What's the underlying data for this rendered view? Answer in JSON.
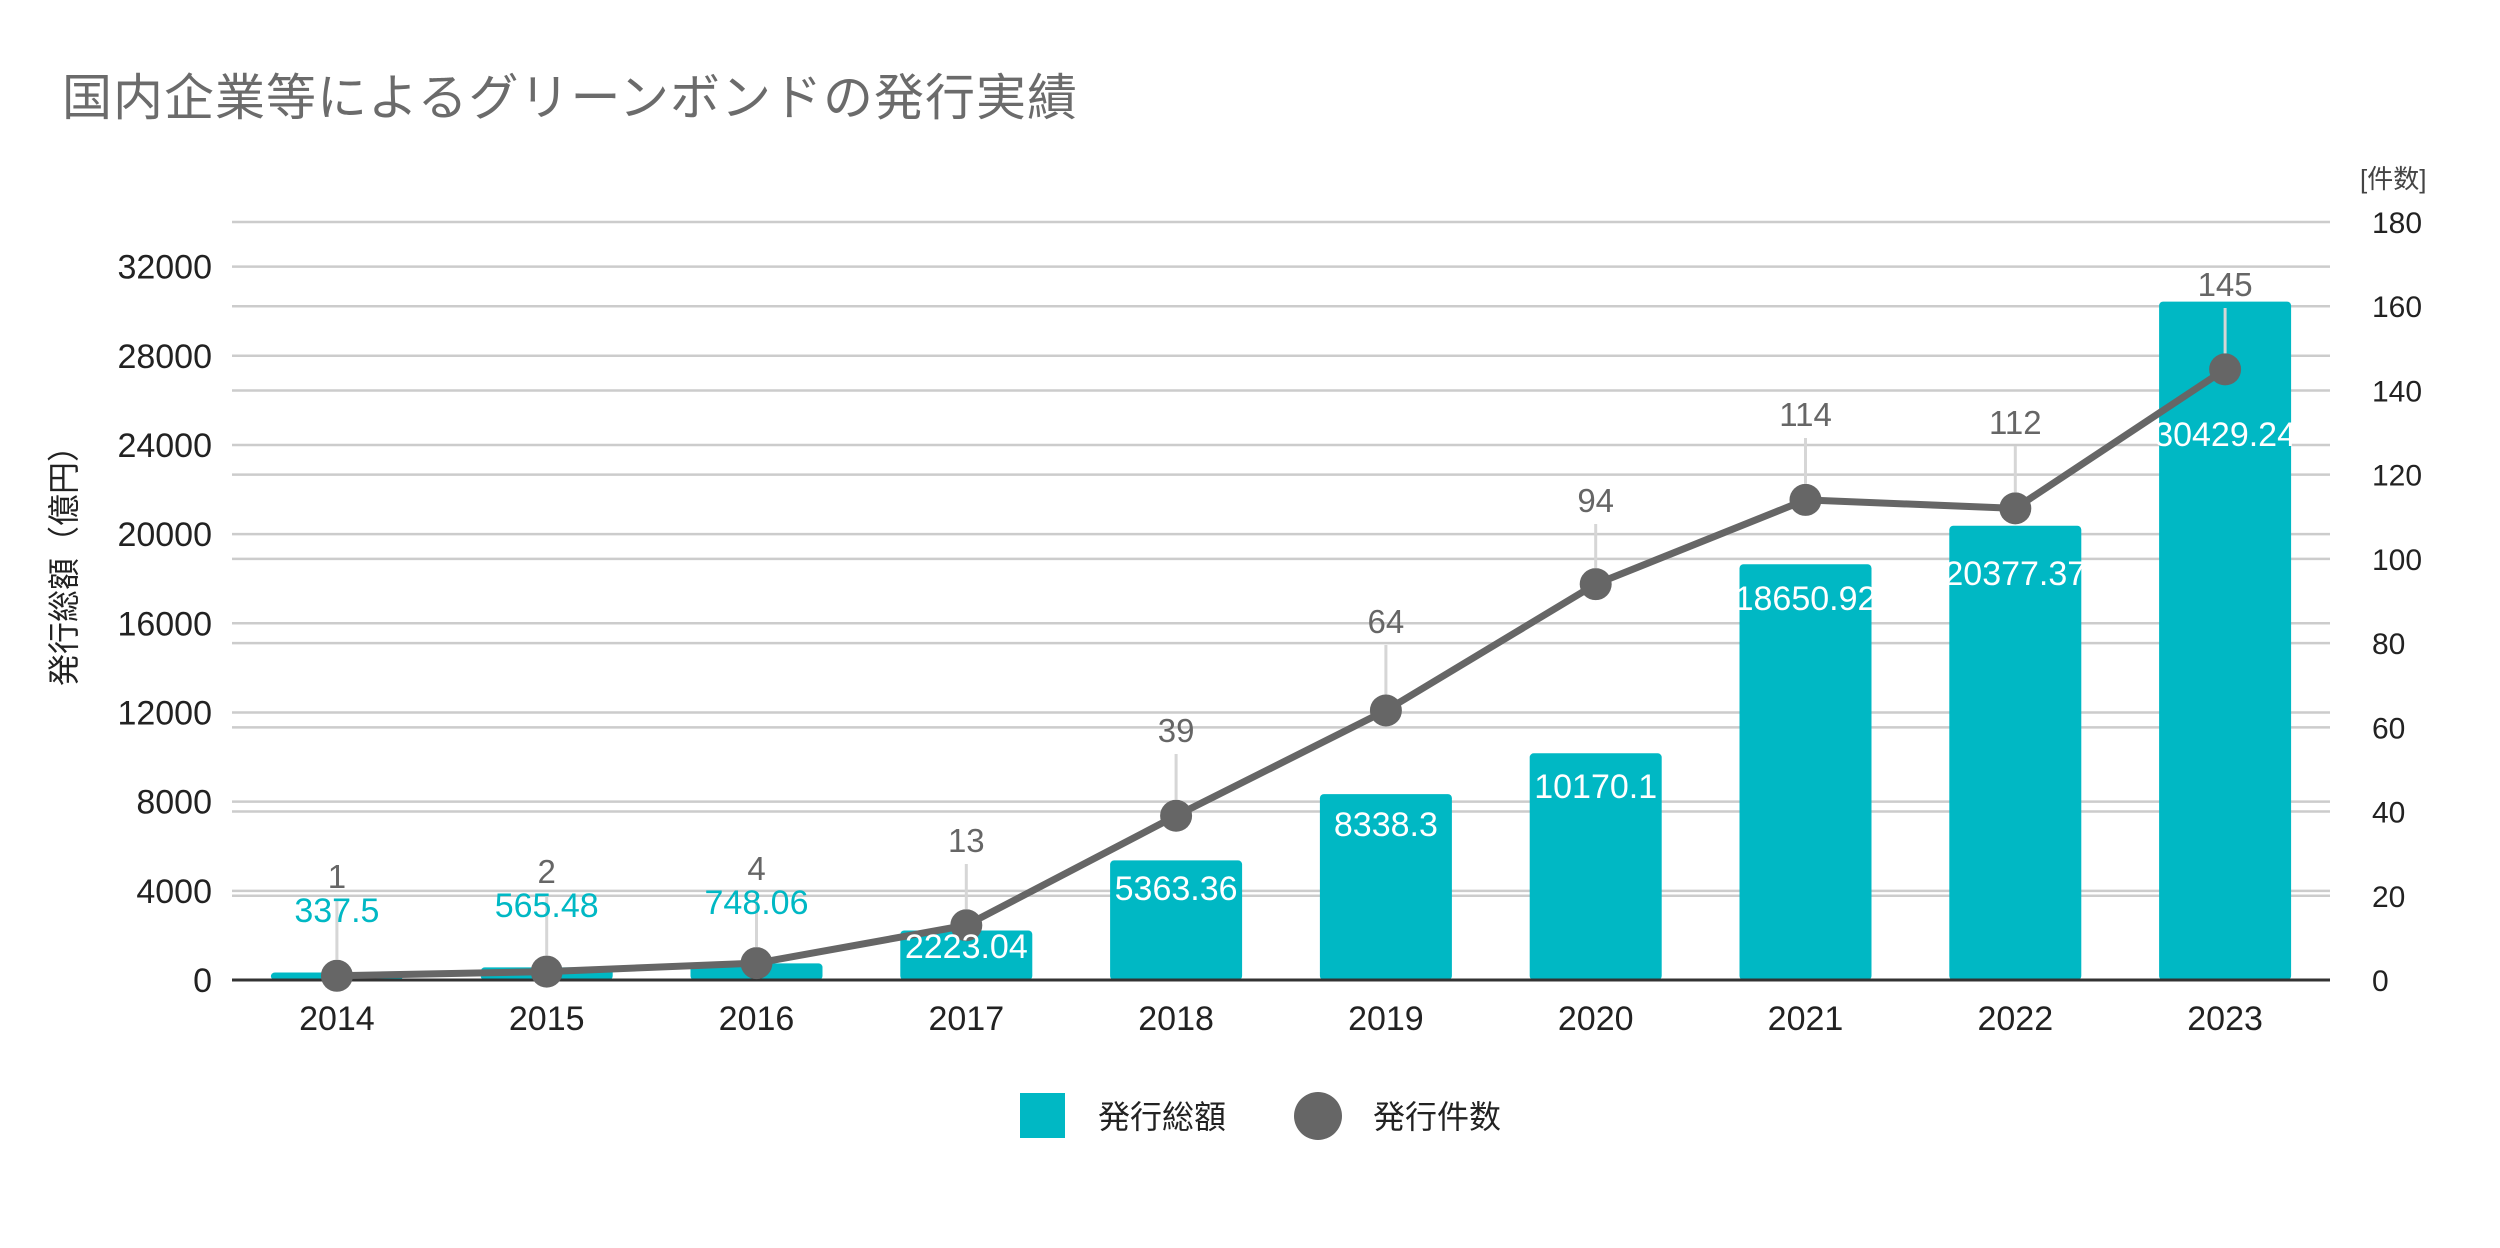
{
  "title": "国内企業等によるグリーンボンドの発行実績",
  "colors": {
    "bar": "#00B8C4",
    "line": "#666666",
    "grid": "#cccccc",
    "axis": "#333333",
    "label_dark": "#666666"
  },
  "chart_data": {
    "type": "bar",
    "categories": [
      "2014",
      "2015",
      "2016",
      "2017",
      "2018",
      "2019",
      "2020",
      "2021",
      "2022",
      "2023"
    ],
    "series": [
      {
        "name": "発行総額",
        "type": "bar",
        "axis": "left",
        "values": [
          337.5,
          565.48,
          748.06,
          2223.04,
          5363.36,
          8338.3,
          10170.1,
          18650.92,
          20377.37,
          30429.24
        ]
      },
      {
        "name": "発行件数",
        "type": "line",
        "axis": "right",
        "values": [
          1,
          2,
          4,
          13,
          39,
          64,
          94,
          114,
          112,
          145
        ]
      }
    ],
    "left_axis": {
      "label": "発行総額（億円）",
      "ylim": [
        0,
        34000
      ],
      "ticks": [
        0,
        4000,
        8000,
        12000,
        16000,
        20000,
        24000,
        28000,
        32000
      ]
    },
    "right_axis": {
      "label": "[件数]",
      "ylim": [
        0,
        180
      ],
      "ticks": [
        0,
        20,
        40,
        60,
        80,
        100,
        120,
        140,
        160,
        180
      ]
    },
    "grid": true,
    "legend_position": "bottom-center"
  }
}
